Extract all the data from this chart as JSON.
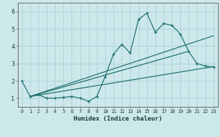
{
  "xlabel": "Humidex (Indice chaleur)",
  "xlim": [
    -0.5,
    23.5
  ],
  "ylim": [
    0.5,
    6.5
  ],
  "xticks": [
    0,
    1,
    2,
    3,
    4,
    5,
    6,
    7,
    8,
    9,
    10,
    11,
    12,
    13,
    14,
    15,
    16,
    17,
    18,
    19,
    20,
    21,
    22,
    23
  ],
  "yticks": [
    1,
    2,
    3,
    4,
    5,
    6
  ],
  "bg_color": "#cce8ea",
  "grid_color": "#b0d4d8",
  "line_color": "#1e7070",
  "series_main": {
    "x": [
      0,
      1,
      2,
      3,
      4,
      5,
      6,
      7,
      8,
      9,
      10,
      11,
      12,
      13,
      14,
      15,
      16,
      17,
      18,
      19,
      20,
      21,
      22,
      23
    ],
    "y": [
      2.0,
      1.1,
      1.2,
      1.0,
      1.0,
      1.05,
      1.1,
      1.0,
      0.82,
      1.1,
      2.25,
      3.55,
      4.1,
      3.6,
      5.55,
      5.9,
      4.8,
      5.3,
      5.2,
      4.7,
      3.7,
      3.0,
      2.85,
      2.8
    ]
  },
  "trend1": {
    "x": [
      1,
      23
    ],
    "y": [
      1.1,
      4.6
    ]
  },
  "trend2": {
    "x": [
      1,
      20
    ],
    "y": [
      1.1,
      3.7
    ]
  },
  "trend3": {
    "x": [
      1,
      23
    ],
    "y": [
      1.1,
      2.82
    ]
  }
}
